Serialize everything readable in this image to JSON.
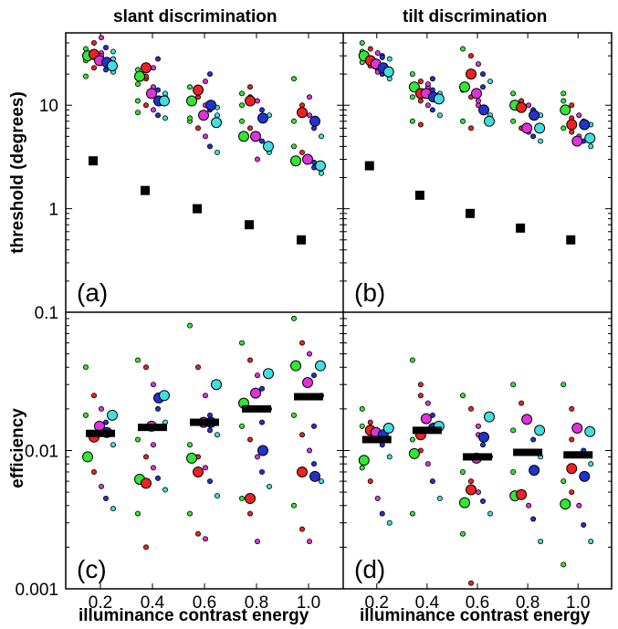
{
  "figure": {
    "col_titles": [
      "slant discrimination",
      "tilt discrimination"
    ],
    "x_label": "illuminance contrast energy",
    "y_label_top": "threshold (degrees)",
    "y_label_bottom": "efficiency",
    "x_ticks": [
      "0.2",
      "0.4",
      "0.6",
      "0.8",
      "1.0"
    ],
    "top_y_ticks": [
      "1",
      "10"
    ],
    "bottom_y_ticks": [
      "0.001",
      "0.01",
      "0.1"
    ],
    "panel_labels": [
      "(a)",
      "(b)",
      "(c)",
      "(d)"
    ],
    "colors": {
      "green": "#33e633",
      "red": "#ee2222",
      "magenta": "#dd33dd",
      "blue": "#2233cc",
      "cyan": "#44dddd",
      "marker": "#000000"
    }
  },
  "chart_data": [
    {
      "type": "scatter",
      "panel": "(a)",
      "title": "slant discrimination",
      "ylabel": "threshold (degrees)",
      "xlabel": "",
      "yscale": "log",
      "ylim": [
        0.3,
        45
      ],
      "x": [
        0.2,
        0.4,
        0.6,
        0.8,
        1.0
      ],
      "ideal_observer": [
        2.9,
        1.5,
        1.0,
        0.7,
        0.5
      ],
      "group_means": {
        "green": [
          30,
          19,
          11,
          5,
          2.9
        ],
        "red": [
          31,
          23,
          14,
          11,
          8.5
        ],
        "magenta": [
          27,
          13,
          8,
          5,
          3
        ],
        "blue": [
          26,
          11,
          10,
          7.5,
          7
        ],
        "cyan": [
          24,
          11,
          6.8,
          4,
          2.6
        ]
      },
      "individual_points": {
        "0.2": [
          31,
          29,
          28,
          26,
          33,
          35,
          40,
          45,
          22,
          24,
          27,
          29,
          32,
          25,
          21,
          19,
          23,
          30,
          36,
          28
        ],
        "0.4": [
          22,
          18,
          15,
          14,
          12,
          11,
          10,
          9,
          8,
          7.5,
          16,
          19,
          23,
          28,
          13,
          8.5
        ],
        "0.6": [
          15,
          12,
          10,
          9,
          8,
          7,
          6,
          5,
          4,
          3.5,
          11,
          13,
          17,
          20,
          9.5,
          7.5
        ],
        "0.8": [
          13,
          12,
          11,
          9,
          8,
          7,
          6,
          5,
          4.5,
          3.5,
          10,
          15,
          3
        ],
        "1.0": [
          18,
          10,
          8,
          6,
          5,
          4,
          3.5,
          3,
          2.5,
          2.2,
          7,
          9,
          12,
          2.8
        ]
      }
    },
    {
      "type": "scatter",
      "panel": "(b)",
      "title": "tilt discrimination",
      "ylabel": "",
      "xlabel": "",
      "yscale": "log",
      "ylim": [
        0.3,
        45
      ],
      "x": [
        0.2,
        0.4,
        0.6,
        0.8,
        1.0
      ],
      "ideal_observer": [
        2.6,
        1.35,
        0.9,
        0.65,
        0.5
      ],
      "group_means": {
        "green": [
          30,
          15,
          15,
          10,
          9
        ],
        "red": [
          27,
          13,
          20,
          9.5,
          6.5
        ],
        "magenta": [
          25,
          13,
          13,
          6,
          4.5
        ],
        "blue": [
          23,
          12,
          9,
          8,
          6.5
        ],
        "cyan": [
          21,
          11.5,
          7,
          6,
          4.8
        ]
      },
      "individual_points": {
        "0.2": [
          40,
          35,
          32,
          30,
          28,
          26,
          24,
          22,
          20,
          18,
          33,
          27,
          21,
          29
        ],
        "0.4": [
          20,
          17,
          15,
          14,
          13,
          12,
          11,
          10,
          9,
          8,
          7,
          6.5,
          16,
          18,
          11.5
        ],
        "0.6": [
          35,
          30,
          25,
          20,
          17,
          14,
          12,
          10,
          9,
          8,
          7,
          6,
          11,
          15
        ],
        "0.8": [
          13,
          11,
          10,
          9,
          8,
          7,
          6,
          5.5,
          5,
          4.5,
          10.5,
          9.5
        ],
        "1.0": [
          13,
          10,
          8,
          7,
          6.5,
          6,
          5.5,
          5,
          4.5,
          4,
          11,
          7.5
        ]
      }
    },
    {
      "type": "scatter",
      "panel": "(c)",
      "ylabel": "efficiency",
      "xlabel": "illuminance contrast energy",
      "yscale": "log",
      "ylim": [
        0.001,
        0.1
      ],
      "x": [
        0.2,
        0.4,
        0.6,
        0.8,
        1.0
      ],
      "median_efficiency": [
        0.0133,
        0.0147,
        0.016,
        0.02,
        0.0245
      ],
      "group_means": {
        "green": [
          0.009,
          0.0062,
          0.0088,
          0.022,
          0.041
        ],
        "red": [
          0.0125,
          0.0058,
          0.007,
          0.0045,
          0.007
        ],
        "magenta": [
          0.015,
          0.015,
          0.016,
          0.026,
          0.031
        ],
        "blue": [
          0.0135,
          0.024,
          0.016,
          0.01,
          0.0065
        ],
        "cyan": [
          0.018,
          0.025,
          0.03,
          0.036,
          0.041
        ]
      },
      "individual_points": {
        "0.2": [
          0.04,
          0.025,
          0.02,
          0.016,
          0.011,
          0.009,
          0.007,
          0.0055,
          0.0045,
          0.0038,
          0.018,
          0.013
        ],
        "0.4": [
          0.045,
          0.04,
          0.03,
          0.02,
          0.016,
          0.012,
          0.009,
          0.0075,
          0.0063,
          0.0052,
          0.0035,
          0.002,
          0.011
        ],
        "0.6": [
          0.08,
          0.04,
          0.025,
          0.018,
          0.013,
          0.011,
          0.009,
          0.0075,
          0.006,
          0.0047,
          0.0035,
          0.0025,
          0.0023,
          0.014
        ],
        "0.8": [
          0.06,
          0.045,
          0.035,
          0.028,
          0.02,
          0.015,
          0.012,
          0.009,
          0.007,
          0.0055,
          0.0045,
          0.0035,
          0.0022,
          0.016
        ],
        "1.0": [
          0.09,
          0.06,
          0.05,
          0.035,
          0.025,
          0.018,
          0.013,
          0.01,
          0.008,
          0.006,
          0.004,
          0.0027,
          0.0022,
          0.015
        ]
      }
    },
    {
      "type": "scatter",
      "panel": "(d)",
      "ylabel": "",
      "xlabel": "illuminance contrast energy",
      "yscale": "log",
      "ylim": [
        0.001,
        0.1
      ],
      "x": [
        0.2,
        0.4,
        0.6,
        0.8,
        1.0
      ],
      "median_efficiency": [
        0.012,
        0.014,
        0.009,
        0.0097,
        0.0093
      ],
      "group_means": {
        "green": [
          0.0085,
          0.0095,
          0.0042,
          0.0047,
          0.0041
        ],
        "red": [
          0.014,
          0.013,
          0.0052,
          0.0048,
          0.0074
        ],
        "magenta": [
          0.0135,
          0.017,
          0.0088,
          0.0168,
          0.0145
        ],
        "blue": [
          0.013,
          0.0145,
          0.0125,
          0.0072,
          0.0065
        ],
        "cyan": [
          0.0145,
          0.015,
          0.0175,
          0.014,
          0.0137
        ]
      },
      "individual_points": {
        "0.2": [
          0.02,
          0.016,
          0.013,
          0.011,
          0.009,
          0.0075,
          0.006,
          0.0045,
          0.0035,
          0.003,
          0.015
        ],
        "0.4": [
          0.045,
          0.03,
          0.022,
          0.018,
          0.015,
          0.012,
          0.01,
          0.008,
          0.006,
          0.0045,
          0.0035,
          0.025
        ],
        "0.6": [
          0.025,
          0.02,
          0.015,
          0.011,
          0.009,
          0.007,
          0.006,
          0.005,
          0.0043,
          0.0035,
          0.0025,
          0.0011,
          0.013
        ],
        "0.8": [
          0.03,
          0.022,
          0.017,
          0.012,
          0.009,
          0.007,
          0.005,
          0.004,
          0.0032,
          0.0022,
          0.014
        ],
        "1.0": [
          0.03,
          0.02,
          0.014,
          0.01,
          0.008,
          0.006,
          0.005,
          0.004,
          0.0029,
          0.0022,
          0.0015,
          0.012
        ]
      }
    }
  ]
}
